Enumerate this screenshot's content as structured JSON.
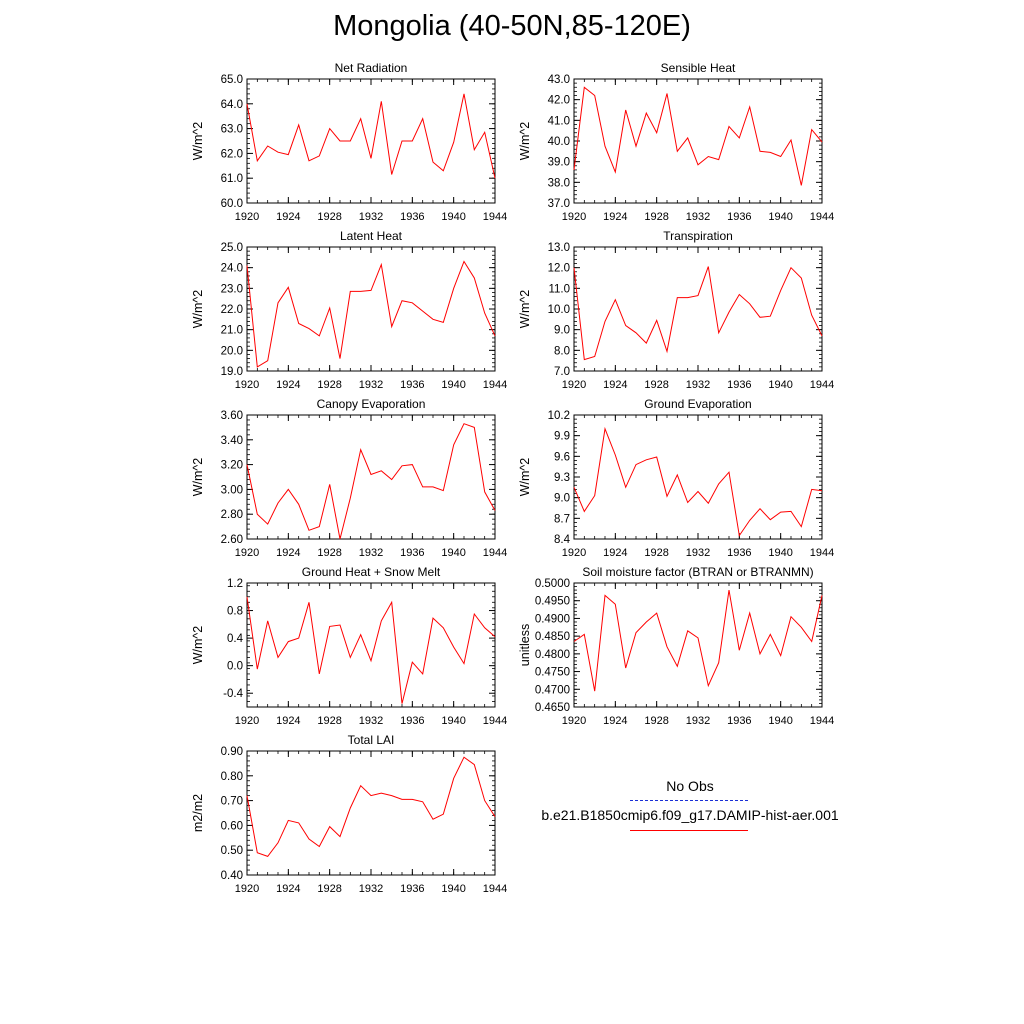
{
  "title": "Mongolia (40-50N,85-120E)",
  "colors": {
    "series": "#ff0000",
    "obs": "#1a2fd6",
    "axis": "#000000"
  },
  "legend": {
    "obs_label": "No Obs",
    "model_label": "b.e21.B1850cmip6.f09_g17.DAMIP-hist-aer.001"
  },
  "chart_data": [
    {
      "type": "line",
      "title": "Net Radiation",
      "ylabel": "W/m^2",
      "xlim": [
        1920,
        1944
      ],
      "ylim": [
        60.0,
        65.0
      ],
      "yticks": [
        60.0,
        61.0,
        62.0,
        63.0,
        64.0,
        65.0
      ],
      "yticklabels": [
        "60.0",
        "61.0",
        "62.0",
        "63.0",
        "64.0",
        "65.0"
      ],
      "xticks": [
        1920,
        1924,
        1928,
        1932,
        1936,
        1940,
        1944
      ],
      "xticklabels": [
        "1920",
        "1924",
        "1928",
        "1932",
        "1936",
        "1940",
        "1944"
      ],
      "x": [
        1920,
        1921,
        1922,
        1923,
        1924,
        1925,
        1926,
        1927,
        1928,
        1929,
        1930,
        1931,
        1932,
        1933,
        1934,
        1935,
        1936,
        1937,
        1938,
        1939,
        1940,
        1941,
        1942,
        1943,
        1944
      ],
      "series": [
        {
          "values": [
            64.0,
            61.7,
            62.3,
            62.05,
            61.95,
            63.15,
            61.7,
            61.9,
            63.0,
            62.5,
            62.5,
            63.4,
            61.8,
            64.1,
            61.15,
            62.5,
            62.5,
            63.4,
            61.65,
            61.3,
            62.45,
            64.4,
            62.15,
            62.85,
            61.0
          ]
        }
      ]
    },
    {
      "type": "line",
      "title": "Sensible Heat",
      "ylabel": "W/m^2",
      "xlim": [
        1920,
        1944
      ],
      "ylim": [
        37.0,
        43.0
      ],
      "yticks": [
        37.0,
        38.0,
        39.0,
        40.0,
        41.0,
        42.0,
        43.0
      ],
      "yticklabels": [
        "37.0",
        "38.0",
        "39.0",
        "40.0",
        "41.0",
        "42.0",
        "43.0"
      ],
      "xticks": [
        1920,
        1924,
        1928,
        1932,
        1936,
        1940,
        1944
      ],
      "xticklabels": [
        "1920",
        "1924",
        "1928",
        "1932",
        "1936",
        "1940",
        "1944"
      ],
      "x": [
        1920,
        1921,
        1922,
        1923,
        1924,
        1925,
        1926,
        1927,
        1928,
        1929,
        1930,
        1931,
        1932,
        1933,
        1934,
        1935,
        1936,
        1937,
        1938,
        1939,
        1940,
        1941,
        1942,
        1943,
        1944
      ],
      "series": [
        {
          "values": [
            38.6,
            42.6,
            42.2,
            39.75,
            38.5,
            41.5,
            39.75,
            41.35,
            40.4,
            42.3,
            39.5,
            40.15,
            38.85,
            39.25,
            39.1,
            40.7,
            40.15,
            41.65,
            39.5,
            39.45,
            39.25,
            40.05,
            37.85,
            40.55,
            39.95
          ]
        }
      ]
    },
    {
      "type": "line",
      "title": "Latent Heat",
      "ylabel": "W/m^2",
      "xlim": [
        1920,
        1944
      ],
      "ylim": [
        19.0,
        25.0
      ],
      "yticks": [
        19.0,
        20.0,
        21.0,
        22.0,
        23.0,
        24.0,
        25.0
      ],
      "yticklabels": [
        "19.0",
        "20.0",
        "21.0",
        "22.0",
        "23.0",
        "24.0",
        "25.0"
      ],
      "xticks": [
        1920,
        1924,
        1928,
        1932,
        1936,
        1940,
        1944
      ],
      "xticklabels": [
        "1920",
        "1924",
        "1928",
        "1932",
        "1936",
        "1940",
        "1944"
      ],
      "x": [
        1920,
        1921,
        1922,
        1923,
        1924,
        1925,
        1926,
        1927,
        1928,
        1929,
        1930,
        1931,
        1932,
        1933,
        1934,
        1935,
        1936,
        1937,
        1938,
        1939,
        1940,
        1941,
        1942,
        1943,
        1944
      ],
      "series": [
        {
          "values": [
            24.1,
            19.2,
            19.5,
            22.3,
            23.05,
            21.3,
            21.05,
            20.7,
            22.05,
            19.6,
            22.85,
            22.85,
            22.9,
            24.15,
            21.15,
            22.4,
            22.3,
            21.9,
            21.5,
            21.35,
            23.0,
            24.3,
            23.5,
            21.8,
            20.7
          ]
        }
      ]
    },
    {
      "type": "line",
      "title": "Transpiration",
      "ylabel": "W/m^2",
      "xlim": [
        1920,
        1944
      ],
      "ylim": [
        7.0,
        13.0
      ],
      "yticks": [
        7.0,
        8.0,
        9.0,
        10.0,
        11.0,
        12.0,
        13.0
      ],
      "yticklabels": [
        "7.0",
        "8.0",
        "9.0",
        "10.0",
        "11.0",
        "12.0",
        "13.0"
      ],
      "xticks": [
        1920,
        1924,
        1928,
        1932,
        1936,
        1940,
        1944
      ],
      "xticklabels": [
        "1920",
        "1924",
        "1928",
        "1932",
        "1936",
        "1940",
        "1944"
      ],
      "x": [
        1920,
        1921,
        1922,
        1923,
        1924,
        1925,
        1926,
        1927,
        1928,
        1929,
        1930,
        1931,
        1932,
        1933,
        1934,
        1935,
        1936,
        1937,
        1938,
        1939,
        1940,
        1941,
        1942,
        1943,
        1944
      ],
      "series": [
        {
          "values": [
            12.0,
            7.55,
            7.7,
            9.4,
            10.45,
            9.2,
            8.85,
            8.35,
            9.45,
            7.95,
            10.55,
            10.55,
            10.65,
            12.05,
            8.85,
            9.85,
            10.7,
            10.25,
            9.6,
            9.65,
            10.9,
            12.0,
            11.5,
            9.7,
            8.7
          ]
        }
      ]
    },
    {
      "type": "line",
      "title": "Canopy Evaporation",
      "ylabel": "W/m^2",
      "xlim": [
        1920,
        1944
      ],
      "ylim": [
        2.6,
        3.6
      ],
      "yticks": [
        2.6,
        2.8,
        3.0,
        3.2,
        3.4,
        3.6
      ],
      "yticklabels": [
        "2.60",
        "2.80",
        "3.00",
        "3.20",
        "3.40",
        "3.60"
      ],
      "xticks": [
        1920,
        1924,
        1928,
        1932,
        1936,
        1940,
        1944
      ],
      "xticklabels": [
        "1920",
        "1924",
        "1928",
        "1932",
        "1936",
        "1940",
        "1944"
      ],
      "x": [
        1920,
        1921,
        1922,
        1923,
        1924,
        1925,
        1926,
        1927,
        1928,
        1929,
        1930,
        1931,
        1932,
        1933,
        1934,
        1935,
        1936,
        1937,
        1938,
        1939,
        1940,
        1941,
        1942,
        1943,
        1944
      ],
      "series": [
        {
          "values": [
            3.2,
            2.8,
            2.72,
            2.89,
            3.0,
            2.88,
            2.67,
            2.7,
            3.04,
            2.6,
            2.93,
            3.32,
            3.12,
            3.15,
            3.08,
            3.19,
            3.2,
            3.02,
            3.02,
            2.99,
            3.36,
            3.53,
            3.5,
            2.98,
            2.83
          ]
        }
      ]
    },
    {
      "type": "line",
      "title": "Ground Evaporation",
      "ylabel": "W/m^2",
      "xlim": [
        1920,
        1944
      ],
      "ylim": [
        8.4,
        10.2
      ],
      "yticks": [
        8.4,
        8.7,
        9.0,
        9.3,
        9.6,
        9.9,
        10.2
      ],
      "yticklabels": [
        "8.4",
        "8.7",
        "9.0",
        "9.3",
        "9.6",
        "9.9",
        "10.2"
      ],
      "xticks": [
        1920,
        1924,
        1928,
        1932,
        1936,
        1940,
        1944
      ],
      "xticklabels": [
        "1920",
        "1924",
        "1928",
        "1932",
        "1936",
        "1940",
        "1944"
      ],
      "x": [
        1920,
        1921,
        1922,
        1923,
        1924,
        1925,
        1926,
        1927,
        1928,
        1929,
        1930,
        1931,
        1932,
        1933,
        1934,
        1935,
        1936,
        1937,
        1938,
        1939,
        1940,
        1941,
        1942,
        1943,
        1944
      ],
      "series": [
        {
          "values": [
            9.15,
            8.8,
            9.03,
            10.0,
            9.62,
            9.15,
            9.48,
            9.55,
            9.59,
            9.02,
            9.33,
            8.93,
            9.09,
            8.92,
            9.2,
            9.37,
            8.45,
            8.67,
            8.84,
            8.68,
            8.79,
            8.8,
            8.58,
            9.12,
            9.1
          ]
        }
      ]
    },
    {
      "type": "line",
      "title": "Ground Heat + Snow Melt",
      "ylabel": "W/m^2",
      "xlim": [
        1920,
        1944
      ],
      "ylim": [
        -0.6,
        1.2
      ],
      "yticks": [
        -0.4,
        0.0,
        0.4,
        0.8,
        1.2
      ],
      "yticklabels": [
        "-0.4",
        "0.0",
        "0.4",
        "0.8",
        "1.2"
      ],
      "xticks": [
        1920,
        1924,
        1928,
        1932,
        1936,
        1940,
        1944
      ],
      "xticklabels": [
        "1920",
        "1924",
        "1928",
        "1932",
        "1936",
        "1940",
        "1944"
      ],
      "x": [
        1920,
        1921,
        1922,
        1923,
        1924,
        1925,
        1926,
        1927,
        1928,
        1929,
        1930,
        1931,
        1932,
        1933,
        1934,
        1935,
        1936,
        1937,
        1938,
        1939,
        1940,
        1941,
        1942,
        1943,
        1944
      ],
      "series": [
        {
          "values": [
            1.0,
            -0.05,
            0.65,
            0.12,
            0.35,
            0.4,
            0.92,
            -0.12,
            0.57,
            0.59,
            0.12,
            0.45,
            0.07,
            0.65,
            0.92,
            -0.55,
            0.05,
            -0.12,
            0.69,
            0.55,
            0.27,
            0.03,
            0.75,
            0.55,
            0.42
          ]
        }
      ]
    },
    {
      "type": "line",
      "title": "Soil moisture factor (BTRAN or BTRANMN)",
      "ylabel": "unitless",
      "xlim": [
        1920,
        1944
      ],
      "ylim": [
        0.465,
        0.5
      ],
      "yticks": [
        0.465,
        0.47,
        0.475,
        0.48,
        0.485,
        0.49,
        0.495,
        0.5
      ],
      "yticklabels": [
        "0.4650",
        "0.4700",
        "0.4750",
        "0.4800",
        "0.4850",
        "0.4900",
        "0.4950",
        "0.5000"
      ],
      "xticks": [
        1920,
        1924,
        1928,
        1932,
        1936,
        1940,
        1944
      ],
      "xticklabels": [
        "1920",
        "1924",
        "1928",
        "1932",
        "1936",
        "1940",
        "1944"
      ],
      "x": [
        1920,
        1921,
        1922,
        1923,
        1924,
        1925,
        1926,
        1927,
        1928,
        1929,
        1930,
        1931,
        1932,
        1933,
        1934,
        1935,
        1936,
        1937,
        1938,
        1939,
        1940,
        1941,
        1942,
        1943,
        1944
      ],
      "series": [
        {
          "values": [
            0.4835,
            0.4855,
            0.4695,
            0.4965,
            0.494,
            0.476,
            0.486,
            0.489,
            0.4915,
            0.482,
            0.4765,
            0.4865,
            0.4845,
            0.471,
            0.4775,
            0.498,
            0.481,
            0.4915,
            0.48,
            0.4855,
            0.4795,
            0.4905,
            0.4875,
            0.4835,
            0.4965
          ]
        }
      ]
    },
    {
      "type": "line",
      "title": "Total LAI",
      "ylabel": "m2/m2",
      "xlim": [
        1920,
        1944
      ],
      "ylim": [
        0.4,
        0.9
      ],
      "yticks": [
        0.4,
        0.5,
        0.6,
        0.7,
        0.8,
        0.9
      ],
      "yticklabels": [
        "0.40",
        "0.50",
        "0.60",
        "0.70",
        "0.80",
        "0.90"
      ],
      "xticks": [
        1920,
        1924,
        1928,
        1932,
        1936,
        1940,
        1944
      ],
      "xticklabels": [
        "1920",
        "1924",
        "1928",
        "1932",
        "1936",
        "1940",
        "1944"
      ],
      "x": [
        1920,
        1921,
        1922,
        1923,
        1924,
        1925,
        1926,
        1927,
        1928,
        1929,
        1930,
        1931,
        1932,
        1933,
        1934,
        1935,
        1936,
        1937,
        1938,
        1939,
        1940,
        1941,
        1942,
        1943,
        1944
      ],
      "series": [
        {
          "values": [
            0.72,
            0.49,
            0.475,
            0.53,
            0.62,
            0.61,
            0.545,
            0.515,
            0.595,
            0.555,
            0.67,
            0.76,
            0.72,
            0.73,
            0.72,
            0.705,
            0.705,
            0.695,
            0.625,
            0.645,
            0.79,
            0.875,
            0.845,
            0.7,
            0.635
          ]
        }
      ]
    }
  ]
}
